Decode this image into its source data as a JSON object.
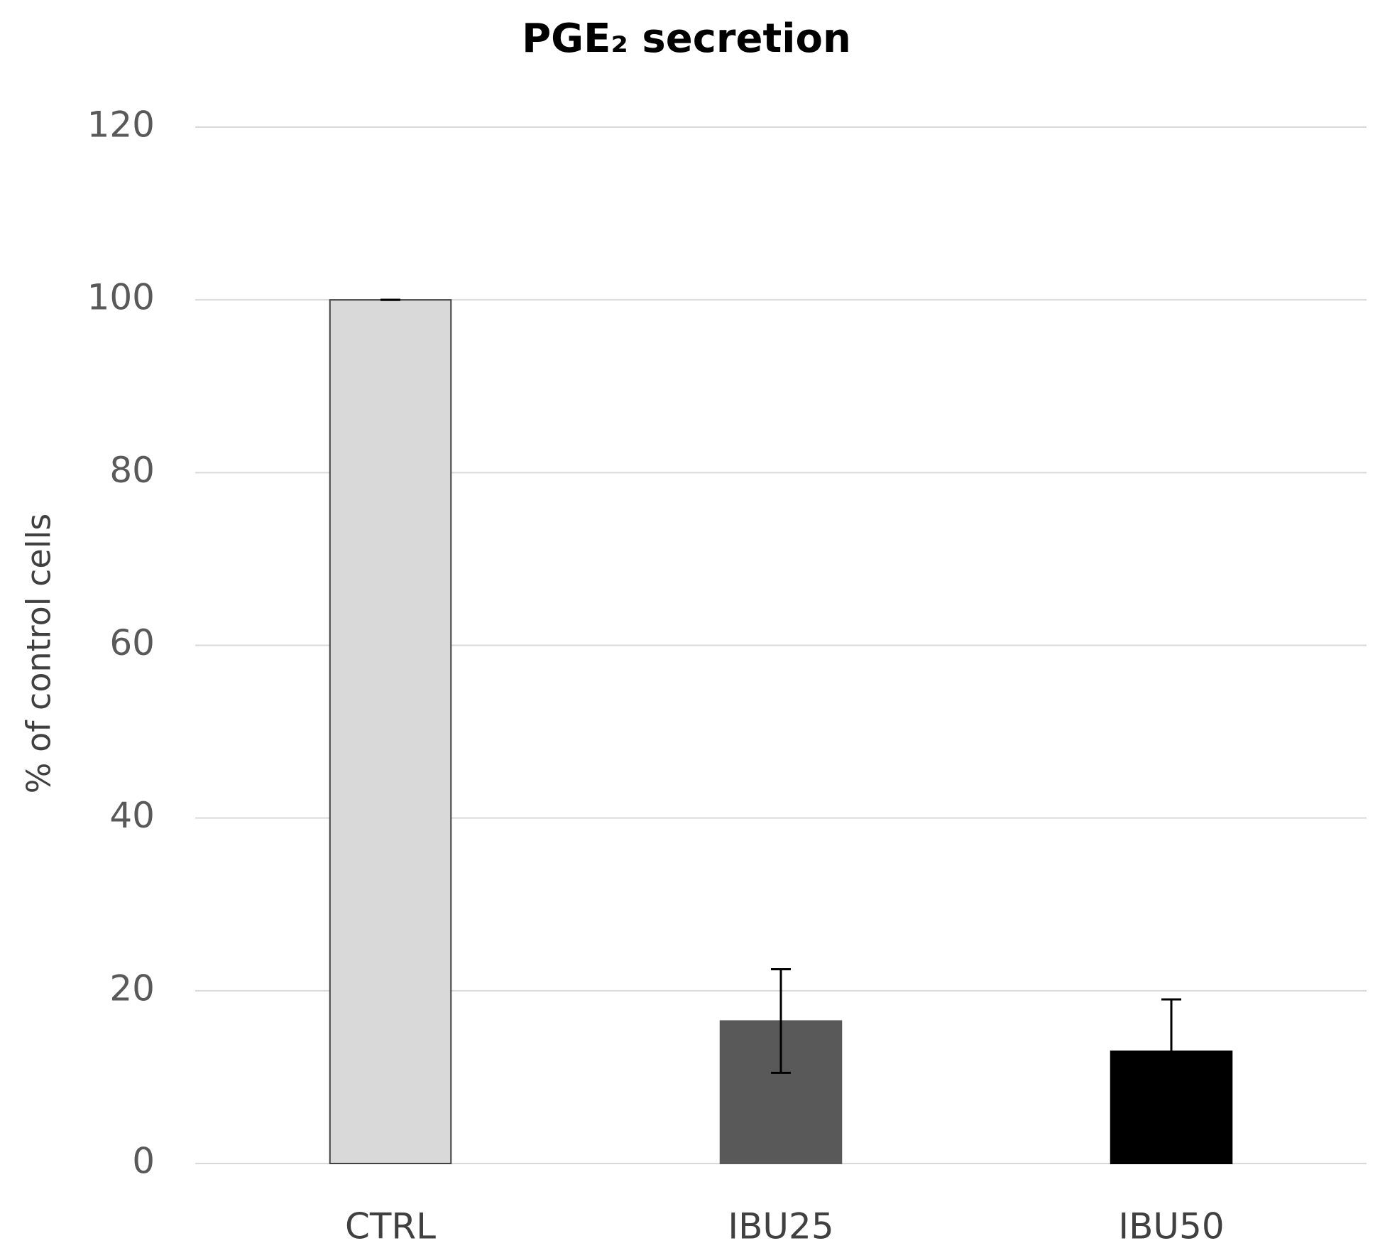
{
  "chart_data": {
    "type": "bar",
    "title": "PGE₂ secretion",
    "y_label": "% of control cells",
    "categories": [
      "CTRL",
      "IBU25",
      "IBU50"
    ],
    "values": [
      100,
      16.5,
      13
    ],
    "errors": [
      0,
      6,
      6
    ],
    "colors": [
      "#d9d9d9",
      "#595959",
      "#000000"
    ],
    "ylim": [
      0,
      120
    ],
    "yticks": [
      0,
      20,
      40,
      60,
      80,
      100,
      120
    ],
    "grid": true
  }
}
